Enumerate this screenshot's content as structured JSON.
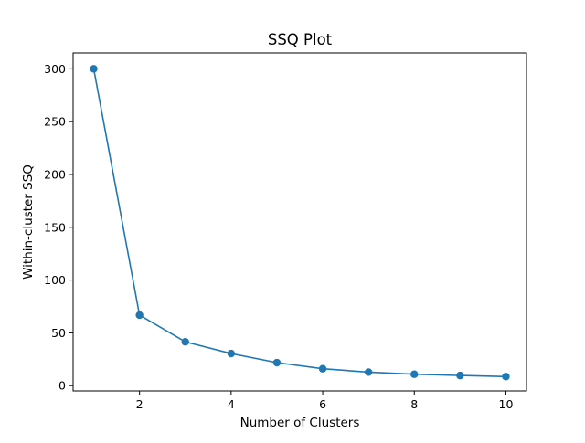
{
  "chart_data": {
    "type": "line",
    "title": "SSQ Plot",
    "xlabel": "Number of Clusters",
    "ylabel": "Within-cluster SSQ",
    "x": [
      1,
      2,
      3,
      4,
      5,
      6,
      7,
      8,
      9,
      10
    ],
    "series": [
      {
        "values": [
          300,
          66.8,
          41.5,
          30.4,
          21.8,
          16.0,
          12.8,
          10.8,
          9.6,
          8.6
        ],
        "color": "#1f77b4",
        "marker": "circle"
      }
    ],
    "xlim": [
      0.55,
      10.45
    ],
    "ylim": [
      -5,
      315
    ],
    "xticks": [
      "2",
      "4",
      "6",
      "8",
      "10"
    ],
    "yticks": [
      "0",
      "50",
      "100",
      "150",
      "200",
      "250",
      "300"
    ],
    "grid": false,
    "legend": "none"
  }
}
